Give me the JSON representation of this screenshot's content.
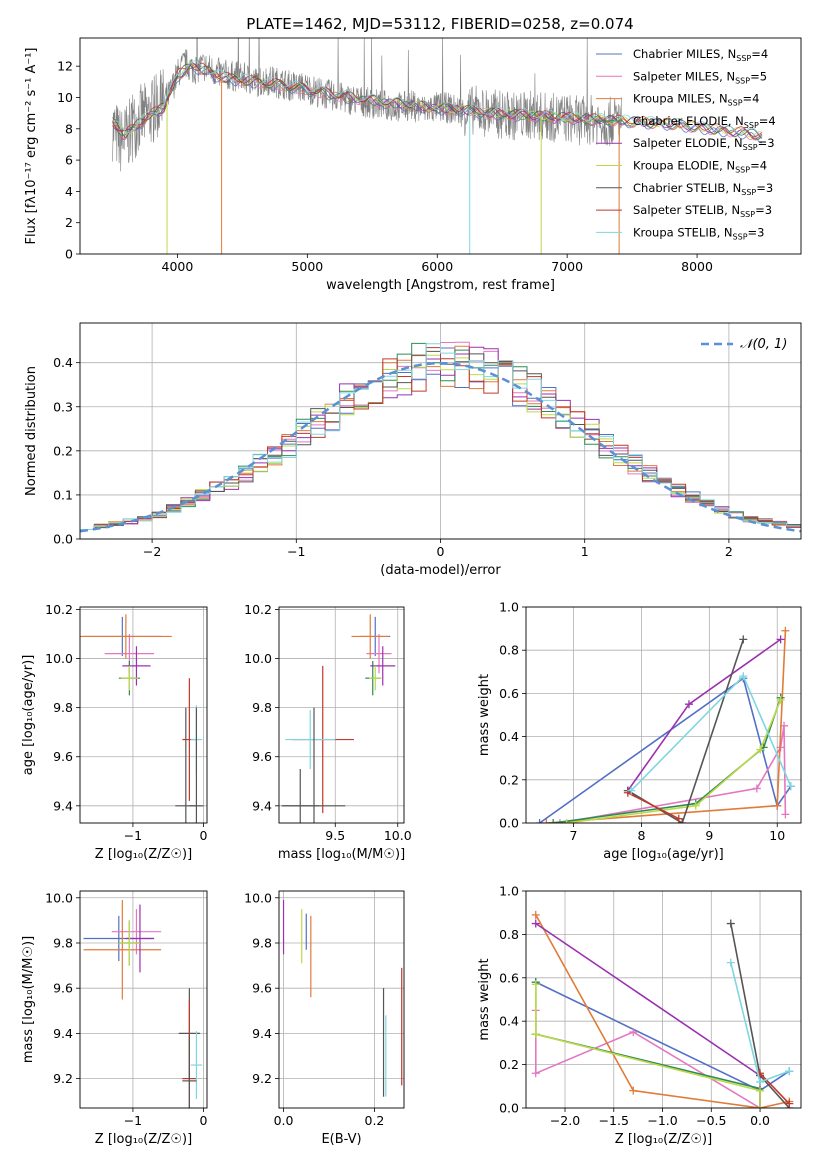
{
  "figure": {
    "title": "PLATE=1462, MJD=53112, FIBERID=0258, z=0.074",
    "colors": [
      "#5470c6",
      "#e377c2",
      "#e07b39",
      "#2e8b57",
      "#9b30b0",
      "#bcd94a",
      "#555555",
      "#c0392b",
      "#7fd6e0"
    ]
  },
  "chart_data": [
    {
      "id": "spectrum",
      "type": "line",
      "title": "PLATE=1462, MJD=53112, FIBERID=0258, z=0.074",
      "xlabel": "wavelength [Angstrom, rest frame]",
      "ylabel": "Flux [fλ10⁻¹⁷ erg cm⁻² s⁻¹ A⁻¹]",
      "xlim": [
        3250,
        8800
      ],
      "ylim": [
        0,
        13.8
      ],
      "xticks": [
        4000,
        5000,
        6000,
        7000,
        8000
      ],
      "yticks": [
        0,
        2,
        4,
        6,
        8,
        10,
        12
      ],
      "grid": false,
      "legend_placement": "top-right",
      "data": {
        "name": "data",
        "color": "#808080",
        "x": [
          3500,
          3560,
          3620,
          3700,
          3780,
          3860,
          3940,
          4000,
          4060,
          4120,
          4200,
          4300,
          4400,
          4500,
          4600,
          4700,
          4800,
          4900,
          5000,
          5100,
          5200,
          5300,
          5400,
          5500,
          5600,
          5700,
          5800,
          5900,
          6000,
          6100,
          6200,
          6300,
          6400,
          6500,
          6600,
          6700,
          6800,
          6900,
          7000,
          7100,
          7200,
          7300,
          7400
        ],
        "y": [
          8.1,
          7.2,
          7.6,
          8.6,
          8.9,
          9.5,
          10.2,
          11.5,
          12.2,
          11.8,
          12.0,
          11.6,
          11.4,
          11.3,
          11.0,
          11.1,
          10.9,
          10.7,
          10.6,
          10.3,
          10.1,
          9.9,
          9.8,
          9.6,
          9.5,
          9.4,
          9.5,
          9.2,
          9.4,
          9.3,
          9.1,
          9.2,
          9.0,
          8.9,
          8.8,
          8.9,
          8.8,
          8.7,
          8.7,
          8.5,
          8.6,
          8.4,
          8.6
        ]
      },
      "models_x": [
        3500,
        3600,
        3700,
        3800,
        3900,
        4000,
        4100,
        4200,
        4300,
        4400,
        4600,
        4800,
        5000,
        5200,
        5400,
        5600,
        5800,
        6000,
        6200,
        6400,
        6600,
        6800,
        7000,
        7200,
        7400,
        7600,
        7800,
        8000,
        8200,
        8400,
        8500
      ],
      "models_y": [
        8.4,
        7.6,
        8.3,
        8.9,
        9.4,
        11.4,
        12.0,
        11.8,
        11.4,
        11.2,
        11.0,
        10.8,
        10.5,
        10.2,
        9.9,
        9.7,
        9.5,
        9.3,
        9.2,
        9.0,
        8.9,
        8.8,
        8.7,
        8.6,
        8.5,
        8.4,
        8.3,
        8.1,
        7.9,
        7.7,
        7.5
      ],
      "series": [
        {
          "name": "Chabrier MILES, N$_{SSP}$=4",
          "label_html": "Chabrier MILES, N<tspan font-size=\"8\" dy=\"3\">SSP</tspan><tspan dy=\"-3\">=4</tspan>"
        },
        {
          "name": "Salpeter MILES, N$_{SSP}$=5"
        },
        {
          "name": "Kroupa MILES, N$_{SSP}$=4"
        },
        {
          "name": "Chabrier ELODIE, N$_{SSP}$=4"
        },
        {
          "name": "Salpeter ELODIE, N$_{SSP}$=3"
        },
        {
          "name": "Kroupa ELODIE, N$_{SSP}$=4"
        },
        {
          "name": "Chabrier STELIB, N$_{SSP}$=3"
        },
        {
          "name": "Salpeter STELIB, N$_{SSP}$=3"
        },
        {
          "name": "Kroupa STELIB, N$_{SSP}$=3"
        }
      ],
      "legend_labels": [
        [
          "Chabrier MILES, N",
          "SSP",
          "=4"
        ],
        [
          "Salpeter MILES, N",
          "SSP",
          "=5"
        ],
        [
          "Kroupa MILES, N",
          "SSP",
          "=4"
        ],
        [
          "Chabrier ELODIE, N",
          "SSP",
          "=4"
        ],
        [
          "Salpeter ELODIE, N",
          "SSP",
          "=3"
        ],
        [
          "Kroupa ELODIE, N",
          "SSP",
          "=4"
        ],
        [
          "Chabrier STELIB, N",
          "SSP",
          "=3"
        ],
        [
          "Salpeter STELIB, N",
          "SSP",
          "=3"
        ],
        [
          "Kroupa STELIB, N",
          "SSP",
          "=3"
        ]
      ],
      "dips": [
        {
          "x": 3920,
          "series": 5
        },
        {
          "x": 4340,
          "series": 2
        },
        {
          "x": 6250,
          "series": 8
        },
        {
          "x": 6800,
          "series": 5
        },
        {
          "x": 7400,
          "series": 2
        }
      ]
    },
    {
      "id": "residuals",
      "type": "line",
      "xlabel": "(data-model)/error",
      "ylabel": "Normed distribution",
      "xlim": [
        -2.5,
        2.5
      ],
      "ylim": [
        0,
        0.49
      ],
      "xticks": [
        -2,
        -1,
        0,
        1,
        2
      ],
      "yticks": [
        0.0,
        0.1,
        0.2,
        0.3,
        0.4
      ],
      "grid": true,
      "legend_placement": "top-right",
      "legend": "𝒩(0, 1)",
      "bins": [
        -2.5,
        -2.4,
        -2.3,
        -2.2,
        -2.1,
        -2.0,
        -1.9,
        -1.8,
        -1.7,
        -1.6,
        -1.5,
        -1.4,
        -1.3,
        -1.2,
        -1.1,
        -1.0,
        -0.9,
        -0.8,
        -0.7,
        -0.6,
        -0.5,
        -0.4,
        -0.3,
        -0.2,
        -0.1,
        0.0,
        0.1,
        0.2,
        0.3,
        0.4,
        0.5,
        0.6,
        0.7,
        0.8,
        0.9,
        1.0,
        1.1,
        1.2,
        1.3,
        1.4,
        1.5,
        1.6,
        1.7,
        1.8,
        1.9,
        2.0,
        2.1,
        2.2,
        2.3,
        2.4
      ],
      "hist_base": [
        0.025,
        0.03,
        0.035,
        0.04,
        0.045,
        0.055,
        0.07,
        0.085,
        0.1,
        0.115,
        0.13,
        0.15,
        0.17,
        0.19,
        0.21,
        0.24,
        0.26,
        0.28,
        0.31,
        0.33,
        0.35,
        0.37,
        0.38,
        0.39,
        0.395,
        0.4,
        0.398,
        0.39,
        0.38,
        0.37,
        0.35,
        0.33,
        0.31,
        0.28,
        0.26,
        0.24,
        0.21,
        0.19,
        0.17,
        0.15,
        0.13,
        0.11,
        0.095,
        0.08,
        0.065,
        0.055,
        0.045,
        0.04,
        0.035,
        0.03
      ]
    },
    {
      "id": "age-vs-Z",
      "type": "scatter",
      "xlabel": "Z [log₁₀(Z/Z☉)]",
      "ylabel": "age  [log₁₀(age/yr)]",
      "xlim": [
        -1.75,
        0.05
      ],
      "ylim": [
        9.33,
        10.21
      ],
      "xticks": [
        -1,
        0
      ],
      "yticks": [
        9.4,
        9.6,
        9.8,
        10.0,
        10.2
      ],
      "grid": true,
      "errorbars": [
        {
          "x": -1.15,
          "y": 10.09,
          "xerr": 0.55,
          "yerr": 0.08,
          "c": 0
        },
        {
          "x": -1.05,
          "y": 10.02,
          "xerr": 0.35,
          "yerr": 0.08,
          "c": 1
        },
        {
          "x": -1.1,
          "y": 10.09,
          "xerr": 0.65,
          "yerr": 0.09,
          "c": 2
        },
        {
          "x": -1.05,
          "y": 9.92,
          "xerr": 0.15,
          "yerr": 0.07,
          "c": 3
        },
        {
          "x": -0.95,
          "y": 9.97,
          "xerr": 0.2,
          "yerr": 0.08,
          "c": 4
        },
        {
          "x": -1.05,
          "y": 9.92,
          "xerr": 0.12,
          "yerr": 0.05,
          "c": 5
        },
        {
          "x": -0.25,
          "y": 9.4,
          "xerr": 0.15,
          "yerr": 0.4,
          "c": 6
        },
        {
          "x": -0.2,
          "y": 9.67,
          "xerr": 0.1,
          "yerr": 0.25,
          "c": 7
        },
        {
          "x": -0.1,
          "y": 9.67,
          "xerr": 0.08,
          "yerr": 0.14,
          "c": 8
        },
        {
          "x": -0.1,
          "y": 9.4,
          "xerr": 0.1,
          "yerr": 0.4,
          "c": 6
        }
      ]
    },
    {
      "id": "age-vs-mass",
      "type": "scatter",
      "xlabel": "mass [log₁₀(M/M☉)]",
      "ylabel": "",
      "xlim": [
        9.05,
        10.05
      ],
      "ylim": [
        9.33,
        10.21
      ],
      "xticks": [
        9.5,
        10.0
      ],
      "yticks": [
        9.4,
        9.6,
        9.8,
        10.0,
        10.2
      ],
      "grid": true,
      "errorbars": [
        {
          "x": 9.82,
          "y": 10.09,
          "xerr": 0.12,
          "yerr": 0.08,
          "c": 0
        },
        {
          "x": 9.85,
          "y": 10.02,
          "xerr": 0.1,
          "yerr": 0.08,
          "c": 1
        },
        {
          "x": 9.78,
          "y": 10.09,
          "xerr": 0.15,
          "yerr": 0.09,
          "c": 2
        },
        {
          "x": 9.8,
          "y": 9.92,
          "xerr": 0.06,
          "yerr": 0.07,
          "c": 3
        },
        {
          "x": 9.88,
          "y": 9.97,
          "xerr": 0.1,
          "yerr": 0.08,
          "c": 4
        },
        {
          "x": 9.82,
          "y": 9.92,
          "xerr": 0.05,
          "yerr": 0.05,
          "c": 5
        },
        {
          "x": 9.22,
          "y": 9.4,
          "xerr": 0.15,
          "yerr": 0.15,
          "c": 6
        },
        {
          "x": 9.4,
          "y": 9.67,
          "xerr": 0.25,
          "yerr": 0.3,
          "c": 7
        },
        {
          "x": 9.3,
          "y": 9.67,
          "xerr": 0.2,
          "yerr": 0.12,
          "c": 8
        },
        {
          "x": 9.33,
          "y": 9.4,
          "xerr": 0.25,
          "yerr": 0.4,
          "c": 6
        }
      ]
    },
    {
      "id": "weight-vs-age",
      "type": "line",
      "xlabel": "age  [log₁₀(age/yr)]",
      "ylabel": "mass weight",
      "xlim": [
        6.3,
        10.35
      ],
      "ylim": [
        0,
        1.0
      ],
      "xticks": [
        7,
        8,
        9,
        10
      ],
      "yticks": [
        0.0,
        0.2,
        0.4,
        0.6,
        0.8,
        1.0
      ],
      "grid": true,
      "series": [
        {
          "c": 0,
          "x": [
            6.5,
            9.5,
            10.0,
            10.2
          ],
          "y": [
            0.0,
            0.67,
            0.08,
            0.17
          ]
        },
        {
          "c": 1,
          "x": [
            6.8,
            9.7,
            10.05,
            10.1,
            10.12
          ],
          "y": [
            0.0,
            0.16,
            0.35,
            0.45,
            0.04
          ]
        },
        {
          "c": 2,
          "x": [
            6.6,
            10.0,
            10.12
          ],
          "y": [
            0.0,
            0.08,
            0.89
          ]
        },
        {
          "c": 3,
          "x": [
            6.7,
            8.8,
            9.8,
            10.05
          ],
          "y": [
            0.0,
            0.09,
            0.35,
            0.58
          ]
        },
        {
          "c": 4,
          "x": [
            7.8,
            8.7,
            10.05
          ],
          "y": [
            0.15,
            0.55,
            0.85
          ]
        },
        {
          "c": 5,
          "x": [
            6.9,
            8.8,
            9.75,
            10.05
          ],
          "y": [
            0.0,
            0.08,
            0.34,
            0.57
          ]
        },
        {
          "c": 6,
          "x": [
            7.8,
            8.6,
            9.5
          ],
          "y": [
            0.15,
            0.0,
            0.85
          ]
        },
        {
          "c": 7,
          "x": [
            7.8,
            8.55
          ],
          "y": [
            0.14,
            0.02
          ]
        },
        {
          "c": 8,
          "x": [
            7.85,
            9.5,
            10.2
          ],
          "y": [
            0.15,
            0.68,
            0.17
          ]
        }
      ]
    },
    {
      "id": "mass-vs-Z",
      "type": "scatter",
      "xlabel": "Z [log₁₀(Z/Z☉)]",
      "ylabel": "mass [log₁₀(M/M☉)]",
      "xlim": [
        -1.75,
        0.05
      ],
      "ylim": [
        9.07,
        10.03
      ],
      "xticks": [
        -1,
        0
      ],
      "yticks": [
        9.2,
        9.4,
        9.6,
        9.8,
        10.0
      ],
      "grid": true,
      "errorbars": [
        {
          "x": -1.2,
          "y": 9.82,
          "xerr": 0.5,
          "yerr": 0.1,
          "c": 0
        },
        {
          "x": -0.95,
          "y": 9.85,
          "xerr": 0.35,
          "yerr": 0.1,
          "c": 1
        },
        {
          "x": -1.15,
          "y": 9.77,
          "xerr": 0.55,
          "yerr": 0.22,
          "c": 2
        },
        {
          "x": -1.05,
          "y": 9.8,
          "xerr": 0.15,
          "yerr": 0.1,
          "c": 3
        },
        {
          "x": -0.9,
          "y": 9.82,
          "xerr": 0.2,
          "yerr": 0.15,
          "c": 4
        },
        {
          "x": -1.05,
          "y": 9.8,
          "xerr": 0.15,
          "yerr": 0.1,
          "c": 5
        },
        {
          "x": -0.2,
          "y": 9.4,
          "xerr": 0.15,
          "yerr": 0.2,
          "c": 6
        },
        {
          "x": -0.2,
          "y": 9.2,
          "xerr": 0.1,
          "yerr": 0.35,
          "c": 7
        },
        {
          "x": -0.1,
          "y": 9.26,
          "xerr": 0.08,
          "yerr": 0.15,
          "c": 8
        },
        {
          "x": -0.2,
          "y": 9.19,
          "xerr": 0.1,
          "yerr": 0.2,
          "c": 6
        }
      ]
    },
    {
      "id": "mass-vs-EBV",
      "type": "scatter",
      "xlabel": "E(B-V)",
      "ylabel": "",
      "xlim": [
        -0.01,
        0.265
      ],
      "ylim": [
        9.07,
        10.03
      ],
      "xticks": [
        0.0,
        0.2
      ],
      "yticks": [
        9.2,
        9.4,
        9.6,
        9.8,
        10.0
      ],
      "grid": true,
      "errorbars": [
        {
          "x": 0.0,
          "y": 9.87,
          "xerr": 0.0,
          "yerr": 0.12,
          "c": 4
        },
        {
          "x": 0.04,
          "y": 9.83,
          "xerr": 0.0,
          "yerr": 0.12,
          "c": 5
        },
        {
          "x": 0.05,
          "y": 9.85,
          "xerr": 0.0,
          "yerr": 0.08,
          "c": 0
        },
        {
          "x": 0.06,
          "y": 9.74,
          "xerr": 0.0,
          "yerr": 0.18,
          "c": 2
        },
        {
          "x": 0.22,
          "y": 9.36,
          "xerr": 0.0,
          "yerr": 0.24,
          "c": 6
        },
        {
          "x": 0.225,
          "y": 9.3,
          "xerr": 0.0,
          "yerr": 0.18,
          "c": 8
        },
        {
          "x": 0.26,
          "y": 9.43,
          "xerr": 0.0,
          "yerr": 0.26,
          "c": 7
        }
      ]
    },
    {
      "id": "weight-vs-Z",
      "type": "line",
      "xlabel": "Z [log₁₀(Z/Z☉)]",
      "ylabel": "mass weight",
      "xlim": [
        -2.4,
        0.42
      ],
      "ylim": [
        0,
        1.0
      ],
      "xticks": [
        -2.0,
        -1.5,
        -1.0,
        -0.5,
        0.0
      ],
      "yticks": [
        0.0,
        0.2,
        0.4,
        0.6,
        0.8,
        1.0
      ],
      "grid": true,
      "series": [
        {
          "c": 0,
          "x": [
            -2.3,
            0.0,
            0.3
          ],
          "y": [
            0.58,
            0.08,
            0.17
          ]
        },
        {
          "c": 1,
          "x": [
            -2.3,
            -2.3,
            -2.3,
            -1.3,
            0.0
          ],
          "y": [
            0.45,
            0.34,
            0.16,
            0.35,
            0.0
          ]
        },
        {
          "c": 2,
          "x": [
            -2.3,
            -1.3,
            0.0,
            0.3
          ],
          "y": [
            0.89,
            0.08,
            0.0,
            0.03
          ]
        },
        {
          "c": 3,
          "x": [
            -2.3,
            -2.3,
            0.0,
            0.0
          ],
          "y": [
            0.58,
            0.34,
            0.09,
            0.0
          ]
        },
        {
          "c": 4,
          "x": [
            -2.3,
            0.0,
            0.0
          ],
          "y": [
            0.85,
            0.15,
            0.0
          ]
        },
        {
          "c": 5,
          "x": [
            -2.3,
            -2.3,
            0.0,
            0.0
          ],
          "y": [
            0.57,
            0.34,
            0.08,
            0.0
          ]
        },
        {
          "c": 6,
          "x": [
            -0.3,
            0.0,
            0.3
          ],
          "y": [
            0.85,
            0.15,
            0.0
          ]
        },
        {
          "c": 7,
          "x": [
            0.0,
            0.3
          ],
          "y": [
            0.16,
            0.02
          ]
        },
        {
          "c": 8,
          "x": [
            -0.3,
            0.0,
            0.3
          ],
          "y": [
            0.67,
            0.12,
            0.17
          ]
        }
      ]
    }
  ]
}
